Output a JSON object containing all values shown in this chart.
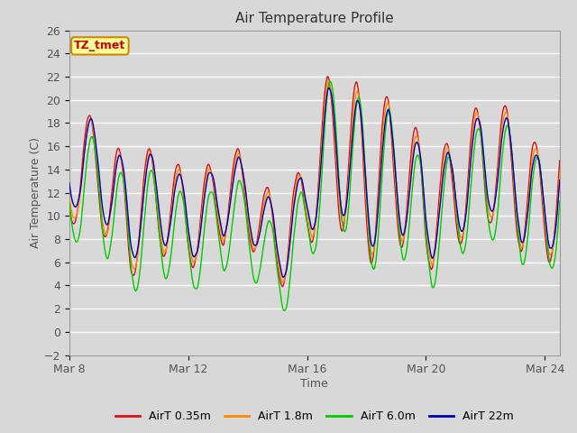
{
  "title": "Air Temperature Profile",
  "xlabel": "Time",
  "ylabel": "Air Temperature (C)",
  "ylim": [
    -2,
    26
  ],
  "yticks": [
    -2,
    0,
    2,
    4,
    6,
    8,
    10,
    12,
    14,
    16,
    18,
    20,
    22,
    24,
    26
  ],
  "xtick_labels": [
    "Mar 8",
    "Mar 12",
    "Mar 16",
    "Mar 20",
    "Mar 24"
  ],
  "xtick_positions": [
    0,
    4,
    8,
    12,
    16
  ],
  "total_days": 16.5,
  "points_per_day": 48,
  "fig_bg_color": "#d8d8d8",
  "plot_bg_color": "#d8d8d8",
  "grid_color": "#ffffff",
  "colors": {
    "AirT 0.35m": "#dd1111",
    "AirT 1.8m": "#ff8800",
    "AirT 6.0m": "#00cc00",
    "AirT 22m": "#0000bb"
  },
  "legend_entries": [
    "AirT 0.35m",
    "AirT 1.8m",
    "AirT 6.0m",
    "AirT 22m"
  ],
  "annotation_text": "TZ_tmet",
  "annotation_color": "#cc0000",
  "annotation_bg": "#ffff99",
  "annotation_border": "#cc8800"
}
